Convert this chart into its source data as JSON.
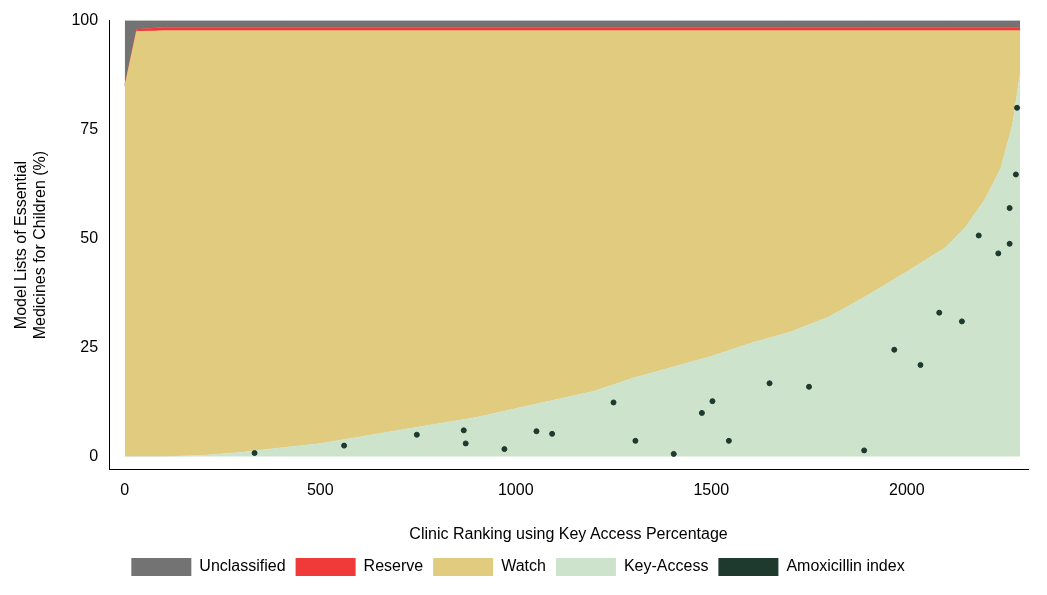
{
  "chart_data": {
    "type": "area",
    "stacked": true,
    "xlabel": "Clinic Ranking using Key Access Percentage",
    "ylabel": "Model Lists of Essential Medicines for Children (%)",
    "x": [
      0,
      30,
      100,
      200,
      300,
      400,
      500,
      600,
      700,
      800,
      900,
      1000,
      1100,
      1200,
      1300,
      1400,
      1500,
      1600,
      1700,
      1800,
      1900,
      2000,
      2100,
      2150,
      2200,
      2240,
      2270,
      2290
    ],
    "series": [
      {
        "name": "Key-Access",
        "color": "#cde3cc",
        "values": [
          0,
          0,
          0,
          0.3,
          1,
          2,
          3,
          4.5,
          6,
          7.5,
          9,
          11,
          13,
          15,
          18,
          20.5,
          23,
          26,
          28.5,
          32,
          37,
          42.4,
          48,
          52.6,
          59,
          66,
          76,
          88
        ]
      },
      {
        "name": "Watch",
        "color": "#e1cb7e",
        "values": [
          85,
          97.5,
          97.7,
          97.4,
          96.7,
          95.7,
          94.7,
          93.2,
          91.7,
          90.2,
          88.7,
          86.7,
          84.7,
          82.7,
          79.7,
          77.2,
          74.7,
          71.7,
          69.2,
          65.7,
          60.7,
          55.3,
          49.7,
          45.1,
          38.7,
          31.7,
          21.7,
          9.7
        ]
      },
      {
        "name": "Reserve",
        "color": "#f03a3a",
        "values": [
          0,
          0.5,
          0.8,
          0.8,
          0.8,
          0.8,
          0.8,
          0.8,
          0.8,
          0.8,
          0.8,
          0.8,
          0.8,
          0.8,
          0.8,
          0.8,
          0.8,
          0.8,
          0.8,
          0.8,
          0.8,
          0.8,
          0.8,
          0.8,
          0.8,
          0.8,
          0.8,
          0.8
        ]
      },
      {
        "name": "Unclassified",
        "color": "#737373",
        "values": [
          15,
          2,
          1.5,
          1.5,
          1.5,
          1.5,
          1.5,
          1.5,
          1.5,
          1.5,
          1.5,
          1.5,
          1.5,
          1.5,
          1.5,
          1.5,
          1.5,
          1.5,
          1.5,
          1.5,
          1.5,
          1.5,
          1.5,
          1.5,
          1.5,
          1.5,
          1.5,
          1.5
        ]
      },
      {
        "name": "Amoxicillin index",
        "type": "scatter",
        "marker": "circle",
        "color": "#1e3a2e",
        "x": [
          332,
          561,
          747,
          867,
          872,
          971,
          1053,
          1093,
          1250,
          1306,
          1404,
          1476,
          1503,
          1545,
          1649,
          1750,
          1891,
          1968,
          2035,
          2083,
          2141,
          2184,
          2234,
          2263,
          2263,
          2279,
          2282
        ],
        "values": [
          0.8,
          2.5,
          5,
          6,
          3,
          1.7,
          5.8,
          5.2,
          12.4,
          3.6,
          0.6,
          10,
          12.7,
          3.6,
          16.8,
          16,
          1.4,
          24.5,
          21,
          33,
          31,
          50.7,
          46.6,
          48.8,
          57,
          64.7,
          80
        ]
      }
    ],
    "xlim": [
      -40,
      2310
    ],
    "xticks": [
      0,
      500,
      1000,
      1500,
      2000
    ],
    "ylim": [
      -3,
      100
    ],
    "yticks": [
      0,
      25,
      50,
      75,
      100
    ],
    "grid": false,
    "legend": "bottom"
  }
}
